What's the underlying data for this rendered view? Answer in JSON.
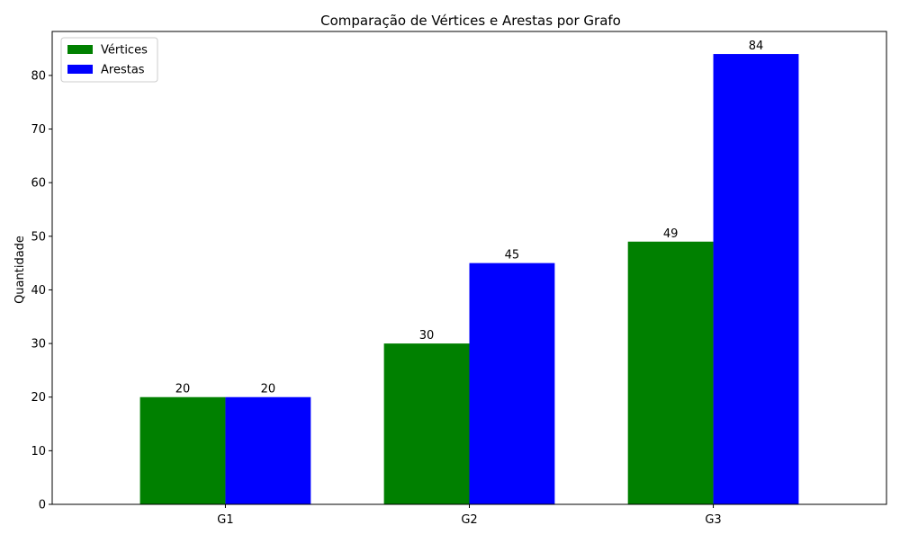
{
  "chart_data": {
    "type": "bar",
    "title": "Comparação de Vértices e Arestas por Grafo",
    "xlabel": "",
    "ylabel": "Quantidade",
    "categories": [
      "G1",
      "G2",
      "G3"
    ],
    "series": [
      {
        "name": "Vértices",
        "values": [
          20,
          30,
          49
        ],
        "color": "#008000"
      },
      {
        "name": "Arestas",
        "values": [
          20,
          45,
          84
        ],
        "color": "#0000ff"
      }
    ],
    "ylim": [
      0,
      88.2
    ],
    "yticks": [
      0,
      10,
      20,
      30,
      40,
      50,
      60,
      70,
      80
    ],
    "grid": false,
    "legend_position": "top-left"
  }
}
